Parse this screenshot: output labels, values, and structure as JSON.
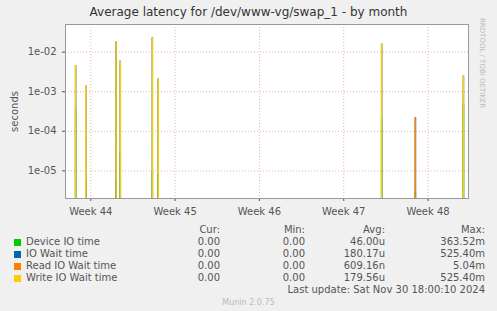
{
  "chart_data": {
    "type": "bar",
    "title": "Average latency for /dev/www-vg/swap_1 - by month",
    "y_label": "seconds",
    "side_text": "RRDTOOL / TOBI OETIKER",
    "footer": "Last update: Sat Nov 30 18:00:10 2024",
    "credit": "Munin 2.0.75",
    "stat_headers": [
      "Cur:",
      "Min:",
      "Avg:",
      "Max:"
    ],
    "log": "y",
    "grid": true,
    "x": [
      43.82,
      43.94,
      44.3,
      44.35,
      44.73,
      44.8,
      47.45,
      47.85,
      48.42
    ],
    "xlim": [
      43.7,
      48.48
    ],
    "xticks": [
      {
        "value": 44,
        "label": "Week 44"
      },
      {
        "value": 45,
        "label": "Week 45"
      },
      {
        "value": 46,
        "label": "Week 46"
      },
      {
        "value": 47,
        "label": "Week 47"
      },
      {
        "value": 48,
        "label": "Week 48"
      }
    ],
    "ylim": [
      2e-06,
      0.05
    ],
    "yticks": [
      {
        "value": 1e-05,
        "label": "1e-05"
      },
      {
        "value": 0.0001,
        "label": "1e-04"
      },
      {
        "value": 0.001,
        "label": "1e-03"
      },
      {
        "value": 0.01,
        "label": "1e-02"
      }
    ],
    "series": [
      {
        "name": "Device IO time",
        "color": "#00cc00",
        "values": [
          0.0004,
          5e-06,
          6e-06,
          3e-05,
          1e-05,
          8e-06,
          0.0002,
          3e-06,
          0.0005
        ],
        "cur": "0.00",
        "min": "0.00",
        "avg": "46.00u",
        "max": "363.52m"
      },
      {
        "name": "IO Wait time",
        "color": "#0066b3",
        "values": [
          0.0045,
          0.0014,
          0.018,
          0.006,
          0.023,
          0.0021,
          0.016,
          0.00022,
          0.0025
        ],
        "cur": "0.00",
        "min": "0.00",
        "avg": "180.17u",
        "max": "525.40m"
      },
      {
        "name": "Read IO Wait time",
        "color": "#ff8000",
        "values": [
          null,
          null,
          null,
          null,
          null,
          null,
          null,
          0.00022,
          null
        ],
        "cur": "0.00",
        "min": "0.00",
        "avg": "609.16n",
        "max": "5.04m"
      },
      {
        "name": "Write IO Wait time",
        "color": "#ffcc00",
        "values": [
          0.0045,
          0.0014,
          0.018,
          0.006,
          0.023,
          0.0021,
          0.016,
          null,
          0.0025
        ],
        "cur": "0.00",
        "min": "0.00",
        "avg": "179.56u",
        "max": "525.40m"
      }
    ]
  }
}
